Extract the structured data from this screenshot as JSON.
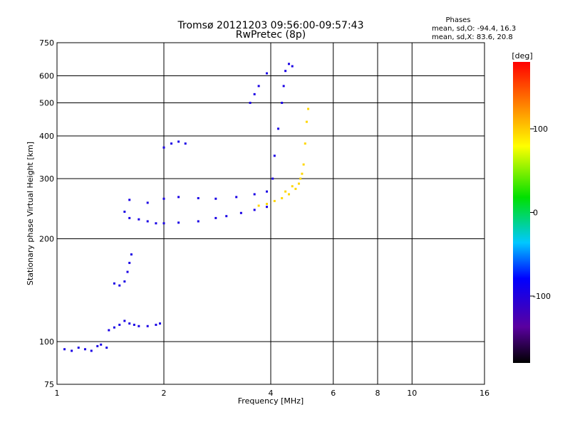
{
  "header": {
    "title_line1": "Tromsø 20121203 09:56:00-09:57:43",
    "title_line2": "RwPretec (8p)"
  },
  "stats": {
    "heading": "Phases",
    "line1": "mean, sd,O: -94.4, 16.3",
    "line2": "mean, sd,X:  83.6, 20.8"
  },
  "colorbar": {
    "unit": "[deg]",
    "ticks": [
      "100",
      "0",
      "-100"
    ],
    "tick_values": [
      100,
      0,
      -100
    ],
    "range": [
      -180,
      180
    ]
  },
  "chart_data": {
    "type": "scatter",
    "xlabel": "Frequency [MHz]",
    "ylabel": "Stationary phase Virtual Height [km]",
    "xscale": "log",
    "yscale": "log",
    "xlim": [
      1,
      16
    ],
    "ylim": [
      75,
      750
    ],
    "x_ticks": [
      1,
      2,
      4,
      6,
      8,
      10,
      16
    ],
    "x_tick_labels": [
      "1",
      "2",
      "4",
      "6",
      "8",
      "10",
      "16"
    ],
    "y_ticks": [
      75,
      100,
      200,
      300,
      400,
      500,
      600,
      750
    ],
    "y_tick_labels": [
      "75",
      "100",
      "200",
      "300",
      "400",
      "500",
      "600",
      "750"
    ],
    "grid": true,
    "series": [
      {
        "color_value": -95,
        "points": [
          [
            1.05,
            95
          ],
          [
            1.1,
            94
          ],
          [
            1.15,
            96
          ],
          [
            1.2,
            95
          ],
          [
            1.25,
            94
          ],
          [
            1.3,
            97
          ],
          [
            1.33,
            98
          ],
          [
            1.38,
            96
          ],
          [
            1.4,
            108
          ],
          [
            1.45,
            110
          ],
          [
            1.5,
            112
          ],
          [
            1.55,
            115
          ],
          [
            1.6,
            113
          ],
          [
            1.65,
            112
          ],
          [
            1.7,
            111
          ],
          [
            1.8,
            111
          ],
          [
            1.9,
            112
          ],
          [
            1.95,
            113
          ],
          [
            1.45,
            148
          ],
          [
            1.5,
            146
          ],
          [
            1.55,
            150
          ],
          [
            1.58,
            160
          ],
          [
            1.6,
            170
          ],
          [
            1.62,
            180
          ],
          [
            1.55,
            240
          ],
          [
            1.6,
            230
          ],
          [
            1.7,
            228
          ],
          [
            1.8,
            225
          ],
          [
            1.9,
            222
          ],
          [
            2.0,
            222
          ],
          [
            2.2,
            223
          ],
          [
            2.5,
            225
          ],
          [
            2.8,
            230
          ],
          [
            3.0,
            233
          ],
          [
            3.3,
            238
          ],
          [
            3.6,
            243
          ],
          [
            3.9,
            248
          ],
          [
            1.6,
            260
          ],
          [
            1.8,
            255
          ],
          [
            2.0,
            262
          ],
          [
            2.2,
            265
          ],
          [
            2.5,
            263
          ],
          [
            2.8,
            262
          ],
          [
            3.2,
            265
          ],
          [
            3.6,
            270
          ],
          [
            3.9,
            275
          ],
          [
            2.0,
            370
          ],
          [
            2.1,
            380
          ],
          [
            2.2,
            385
          ],
          [
            2.3,
            380
          ],
          [
            3.5,
            500
          ],
          [
            3.6,
            530
          ],
          [
            3.7,
            560
          ],
          [
            3.9,
            610
          ],
          [
            4.05,
            300
          ],
          [
            4.1,
            350
          ],
          [
            4.2,
            420
          ],
          [
            4.3,
            500
          ],
          [
            4.35,
            560
          ],
          [
            4.4,
            620
          ],
          [
            4.5,
            650
          ],
          [
            4.6,
            640
          ]
        ]
      },
      {
        "color_value": 95,
        "points": [
          [
            3.7,
            250
          ],
          [
            3.9,
            253
          ],
          [
            4.1,
            258
          ],
          [
            4.3,
            263
          ],
          [
            4.5,
            270
          ],
          [
            4.7,
            280
          ],
          [
            4.85,
            300
          ],
          [
            4.95,
            330
          ],
          [
            5.0,
            380
          ],
          [
            5.05,
            440
          ],
          [
            5.1,
            480
          ],
          [
            4.4,
            275
          ],
          [
            4.6,
            285
          ],
          [
            4.8,
            290
          ],
          [
            4.9,
            310
          ]
        ]
      }
    ]
  }
}
